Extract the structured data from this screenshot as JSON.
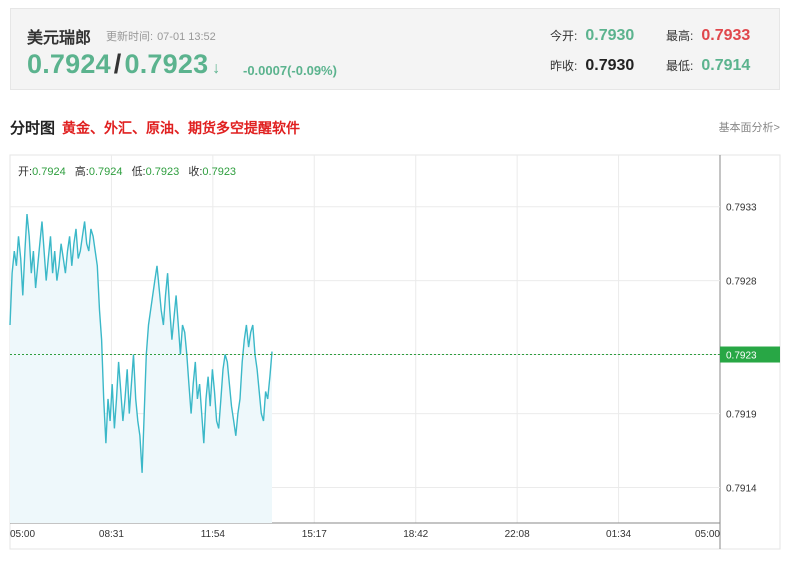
{
  "quote": {
    "name": "美元瑞郎",
    "update_label": "更新时间:",
    "update_time": "07-01 13:52",
    "price_bid": "0.7924",
    "price_sep": "/",
    "price_ask": "0.7923",
    "arrow": "↓",
    "change": "-0.0007(-0.09%)",
    "open_label": "今开:",
    "open_value": "0.7930",
    "high_label": "最高:",
    "high_value": "0.7933",
    "prev_close_label": "昨收:",
    "prev_close_value": "0.7930",
    "low_label": "最低:",
    "low_value": "0.7914"
  },
  "tabs": {
    "title": "分时图",
    "ad_text": "黄金、外汇、原油、期货多空提醒软件",
    "fundamental_link": "基本面分析>"
  },
  "colors": {
    "green": "#5bb38e",
    "red": "#e0474c",
    "line": "#3bb8c8",
    "fill": "#eef8fb",
    "badge": "#28a745",
    "dashed": "#2e9e3e"
  },
  "chart_data": {
    "type": "line",
    "ohlc": {
      "open_label": "开:",
      "open": "0.7924",
      "high_label": "高:",
      "high": "0.7924",
      "low_label": "低:",
      "low": "0.7923",
      "close_label": "收:",
      "close": "0.7923"
    },
    "x_ticks": [
      "05:00",
      "08:31",
      "11:54",
      "15:17",
      "18:42",
      "22:08",
      "01:34",
      "05:00"
    ],
    "y_ticks": [
      "0.7933",
      "0.7928",
      "0.7923",
      "0.7919",
      "0.7914"
    ],
    "y_tick_values": [
      0.7933,
      0.7928,
      0.7923,
      0.7919,
      0.7914
    ],
    "ylim": [
      0.79116,
      0.79365
    ],
    "current_value": "0.7923",
    "current_value_num": 0.7923,
    "values": [
      0.7925,
      0.79285,
      0.793,
      0.7929,
      0.7931,
      0.79295,
      0.7927,
      0.793,
      0.79325,
      0.7931,
      0.79285,
      0.793,
      0.79275,
      0.7929,
      0.79305,
      0.7932,
      0.793,
      0.7928,
      0.79295,
      0.7931,
      0.79285,
      0.793,
      0.7928,
      0.7929,
      0.79305,
      0.79295,
      0.79285,
      0.793,
      0.7931,
      0.7929,
      0.79305,
      0.79315,
      0.79295,
      0.793,
      0.7931,
      0.7932,
      0.79305,
      0.793,
      0.79315,
      0.7931,
      0.793,
      0.7929,
      0.7926,
      0.7924,
      0.792,
      0.7917,
      0.792,
      0.79185,
      0.7921,
      0.7918,
      0.792,
      0.79225,
      0.79205,
      0.79185,
      0.792,
      0.7922,
      0.7919,
      0.7921,
      0.7923,
      0.792,
      0.79185,
      0.79175,
      0.7915,
      0.7919,
      0.7923,
      0.7925,
      0.7926,
      0.7927,
      0.7928,
      0.7929,
      0.79275,
      0.7926,
      0.7925,
      0.7927,
      0.79285,
      0.7926,
      0.7924,
      0.79255,
      0.7927,
      0.7925,
      0.7923,
      0.7925,
      0.79245,
      0.7923,
      0.7921,
      0.7919,
      0.7921,
      0.79225,
      0.792,
      0.7921,
      0.7919,
      0.7917,
      0.792,
      0.79215,
      0.79195,
      0.7922,
      0.79205,
      0.79185,
      0.7918,
      0.792,
      0.7922,
      0.7923,
      0.79225,
      0.7921,
      0.79195,
      0.79185,
      0.79175,
      0.7919,
      0.792,
      0.79225,
      0.7924,
      0.7925,
      0.79235,
      0.79245,
      0.7925,
      0.7923,
      0.7922,
      0.79205,
      0.7919,
      0.79185,
      0.79205,
      0.792,
      0.79215,
      0.79232
    ]
  }
}
